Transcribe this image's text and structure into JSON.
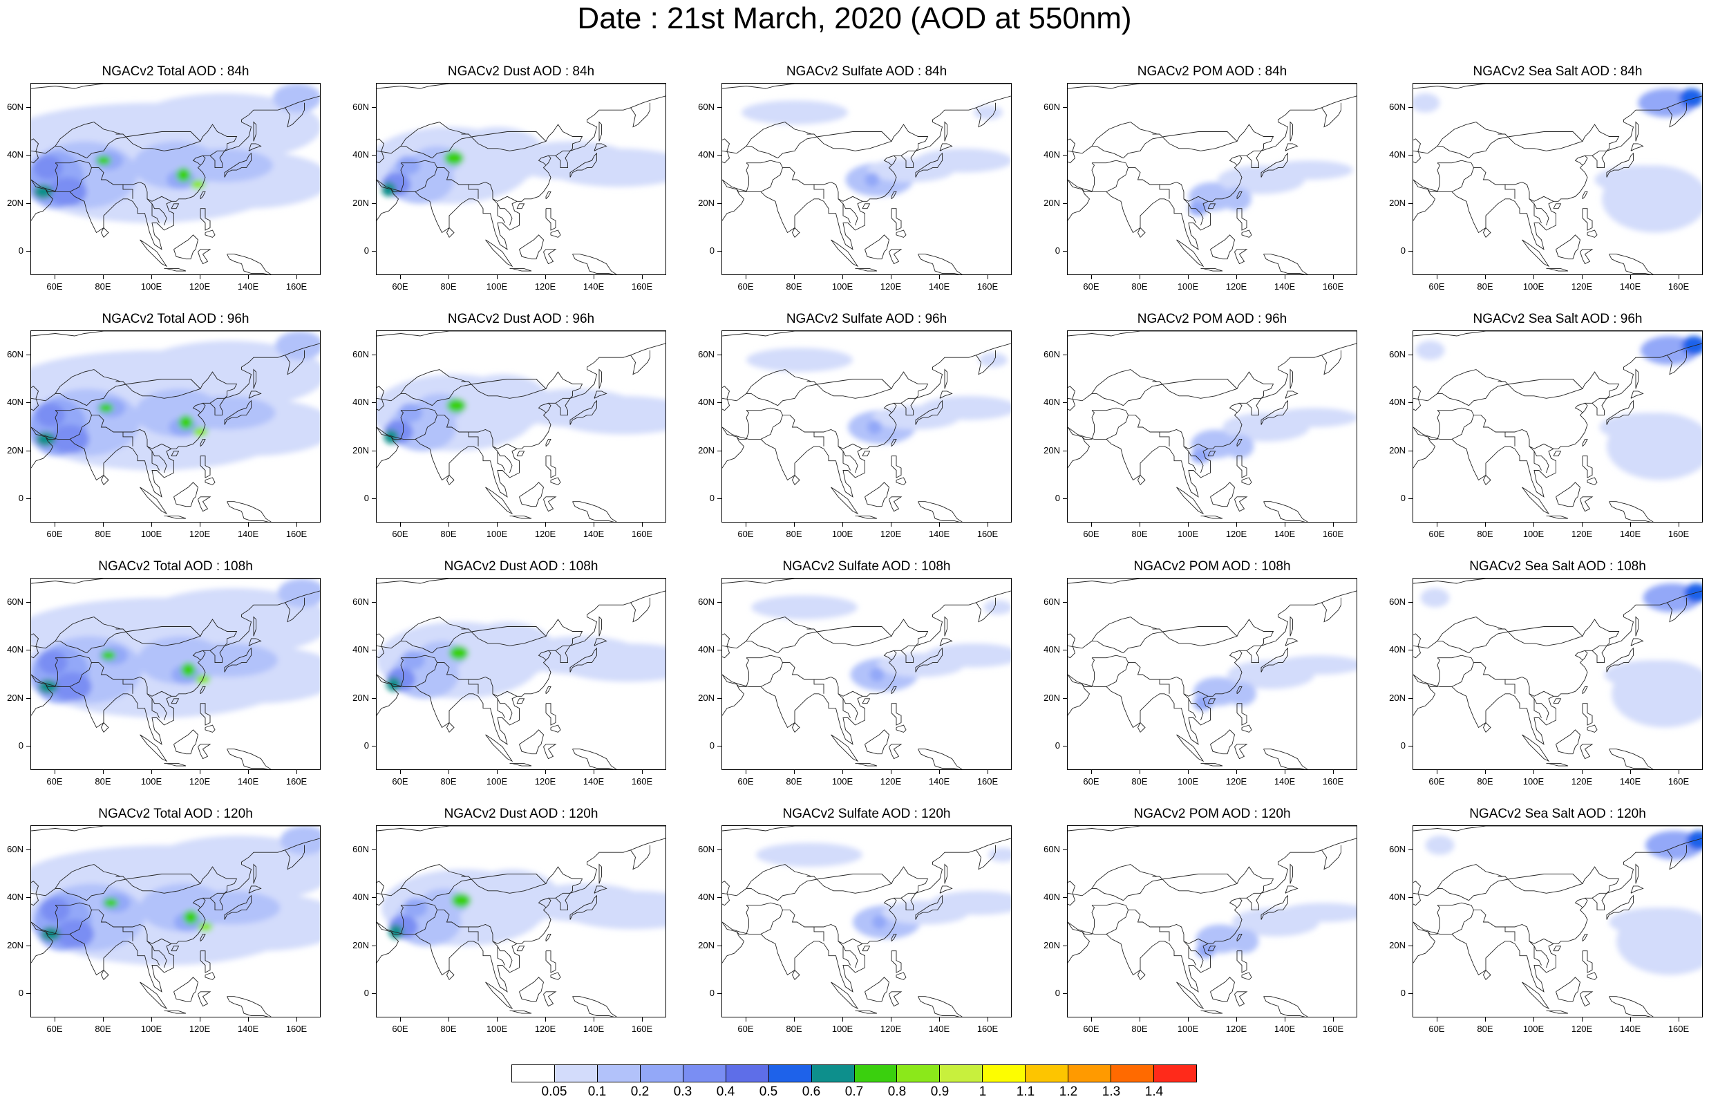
{
  "title": "Date : 21st March, 2020 (AOD at 550nm)",
  "panels": [
    [
      {
        "title": "NGACv2 Total AOD : 84h",
        "species": "total"
      },
      {
        "title": "NGACv2 Dust AOD : 84h",
        "species": "dust"
      },
      {
        "title": "NGACv2 Sulfate AOD : 84h",
        "species": "sulfate"
      },
      {
        "title": "NGACv2 POM AOD : 84h",
        "species": "pom"
      },
      {
        "title": "NGACv2 Sea Salt AOD : 84h",
        "species": "seasalt"
      }
    ],
    [
      {
        "title": "NGACv2 Total AOD : 96h",
        "species": "total"
      },
      {
        "title": "NGACv2 Dust AOD : 96h",
        "species": "dust"
      },
      {
        "title": "NGACv2 Sulfate AOD : 96h",
        "species": "sulfate"
      },
      {
        "title": "NGACv2 POM AOD : 96h",
        "species": "pom"
      },
      {
        "title": "NGACv2 Sea Salt AOD : 96h",
        "species": "seasalt"
      }
    ],
    [
      {
        "title": "NGACv2 Total AOD : 108h",
        "species": "total"
      },
      {
        "title": "NGACv2 Dust AOD : 108h",
        "species": "dust"
      },
      {
        "title": "NGACv2 Sulfate AOD : 108h",
        "species": "sulfate"
      },
      {
        "title": "NGACv2 POM AOD : 108h",
        "species": "pom"
      },
      {
        "title": "NGACv2 Sea Salt AOD : 108h",
        "species": "seasalt"
      }
    ],
    [
      {
        "title": "NGACv2 Total AOD : 120h",
        "species": "total"
      },
      {
        "title": "NGACv2 Dust AOD : 120h",
        "species": "dust"
      },
      {
        "title": "NGACv2 Sulfate AOD : 120h",
        "species": "sulfate"
      },
      {
        "title": "NGACv2 POM AOD : 120h",
        "species": "pom"
      },
      {
        "title": "NGACv2 Sea Salt  AOD : 120h",
        "species": "seasalt"
      }
    ]
  ],
  "x_ticks": [
    "60E",
    "80E",
    "100E",
    "120E",
    "140E",
    "160E"
  ],
  "y_ticks": [
    "60N",
    "40N",
    "20N",
    "0"
  ],
  "colorbar": {
    "labels": [
      "0.05",
      "0.1",
      "0.2",
      "0.3",
      "0.4",
      "0.5",
      "0.6",
      "0.7",
      "0.8",
      "0.9",
      "1",
      "1.1",
      "1.2",
      "1.3",
      "1.4"
    ],
    "colors": [
      "#ffffff",
      "#d3dcfb",
      "#b2c2fa",
      "#93a8f8",
      "#7a8ef3",
      "#5e6ee8",
      "#1e62ea",
      "#0d8f8c",
      "#3ad00e",
      "#8be81a",
      "#c8f03d",
      "#fdfd00",
      "#fdc500",
      "#ff9a00",
      "#ff6a00",
      "#ff2a1a"
    ]
  }
}
